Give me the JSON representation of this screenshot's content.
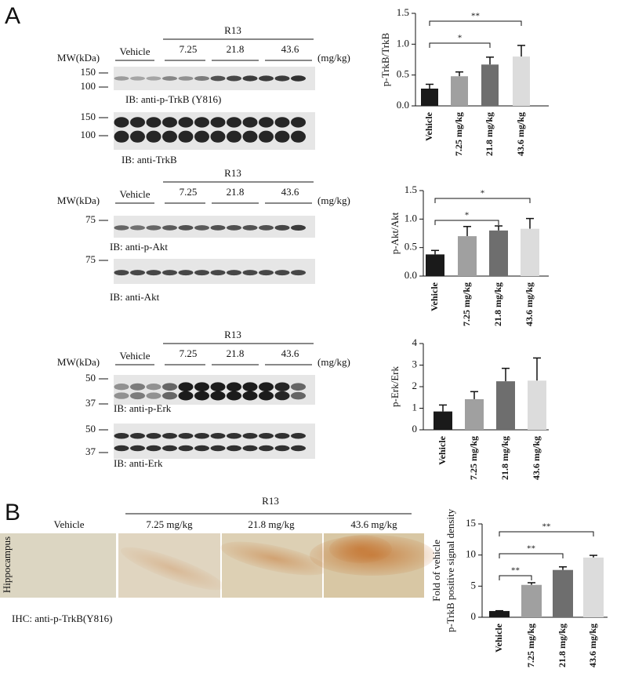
{
  "panel_labels": [
    "A",
    "B"
  ],
  "blots": [
    {
      "group": "R13",
      "control": "Vehicle",
      "doses": [
        "7.25",
        "21.8",
        "43.6"
      ],
      "unit": "(mg/kg)",
      "mw_header": "MW(kDa)",
      "membranes": [
        {
          "markers": [
            "150",
            "100"
          ],
          "label": "IB: anti-p-TrkB (Y816)"
        },
        {
          "markers": [
            "150",
            "100"
          ],
          "label": "IB: anti-TrkB"
        }
      ]
    },
    {
      "group": "R13",
      "control": "Vehicle",
      "doses": [
        "7.25",
        "21.8",
        "43.6"
      ],
      "unit": "(mg/kg)",
      "mw_header": "MW(kDa)",
      "membranes": [
        {
          "markers": [
            "75"
          ],
          "label": "IB: anti-p-Akt"
        },
        {
          "markers": [
            "75"
          ],
          "label": "IB: anti-Akt"
        }
      ]
    },
    {
      "group": "R13",
      "control": "Vehicle",
      "doses": [
        "7.25",
        "21.8",
        "43.6"
      ],
      "unit": "(mg/kg)",
      "mw_header": "MW(kDa)",
      "membranes": [
        {
          "markers": [
            "50",
            "37"
          ],
          "label": "IB: anti-p-Erk"
        },
        {
          "markers": [
            "50",
            "37"
          ],
          "label": "IB: anti-Erk"
        }
      ]
    }
  ],
  "ihc": {
    "group": "R13",
    "panels": [
      "Vehicle",
      "7.25 mg/kg",
      "21.8 mg/kg",
      "43.6 mg/kg"
    ],
    "region": "Hippocampus",
    "label": "IHC: anti-p-TrkB(Y816)"
  },
  "chart_data": [
    {
      "type": "bar",
      "y_label": [
        "p-TrkB/TrkB"
      ],
      "categories": [
        "Vehicle",
        "7.25 mg/kg",
        "21.8 mg/kg",
        "43.6 mg/kg"
      ],
      "values": [
        0.28,
        0.48,
        0.67,
        0.8
      ],
      "errors": [
        0.07,
        0.07,
        0.12,
        0.18
      ],
      "colors": [
        "#1a1a1a",
        "#a0a0a0",
        "#6e6e6e",
        "#dcdcdc"
      ],
      "ylim": [
        0,
        1.5
      ],
      "yticks": [
        {
          "value": 0,
          "label": "0.0"
        },
        {
          "value": 0.5,
          "label": "0.5"
        },
        {
          "value": 1,
          "label": "1.0"
        },
        {
          "value": 1.5,
          "label": "1.5"
        }
      ],
      "annotations": [
        {
          "between": [
            "Vehicle",
            "21.8 mg/kg"
          ],
          "label": "*"
        },
        {
          "between": [
            "Vehicle",
            "43.6 mg/kg"
          ],
          "label": "**"
        }
      ]
    },
    {
      "type": "bar",
      "y_label": [
        "p-Akt/Akt"
      ],
      "categories": [
        "Vehicle",
        "7.25 mg/kg",
        "21.8 mg/kg",
        "43.6 mg/kg"
      ],
      "values": [
        0.38,
        0.7,
        0.8,
        0.83
      ],
      "errors": [
        0.07,
        0.17,
        0.08,
        0.18
      ],
      "colors": [
        "#1a1a1a",
        "#a0a0a0",
        "#6e6e6e",
        "#dcdcdc"
      ],
      "ylim": [
        0,
        1.5
      ],
      "yticks": [
        {
          "value": 0,
          "label": "0.0"
        },
        {
          "value": 0.5,
          "label": "0.5"
        },
        {
          "value": 1,
          "label": "1.0"
        },
        {
          "value": 1.5,
          "label": "1.5"
        }
      ],
      "annotations": [
        {
          "between": [
            "Vehicle",
            "21.8 mg/kg"
          ],
          "label": "*"
        },
        {
          "between": [
            "Vehicle",
            "43.6 mg/kg"
          ],
          "label": "*"
        }
      ]
    },
    {
      "type": "bar",
      "y_label": [
        "p-Erk/Erk"
      ],
      "categories": [
        "Vehicle",
        "7.25 mg/kg",
        "21.8 mg/kg",
        "43.6 mg/kg"
      ],
      "values": [
        0.85,
        1.42,
        2.25,
        2.28
      ],
      "errors": [
        0.3,
        0.35,
        0.6,
        1.05
      ],
      "colors": [
        "#1a1a1a",
        "#a0a0a0",
        "#6e6e6e",
        "#dcdcdc"
      ],
      "ylim": [
        0,
        4
      ],
      "yticks": [
        0,
        1,
        2,
        3,
        4
      ],
      "annotations": []
    },
    {
      "type": "bar",
      "y_label": [
        "Fold of vehicle",
        "p-TrkB positive signal density"
      ],
      "categories": [
        "Vehicle",
        "7.25 mg/kg",
        "21.8 mg/kg",
        "43.6 mg/kg"
      ],
      "values": [
        1,
        5.2,
        7.6,
        9.6
      ],
      "errors": [
        0.05,
        0.35,
        0.5,
        0.35
      ],
      "colors": [
        "#1a1a1a",
        "#a0a0a0",
        "#6e6e6e",
        "#dcdcdc"
      ],
      "ylim": [
        0,
        15
      ],
      "yticks": [
        0,
        5,
        10,
        15
      ],
      "annotations": [
        {
          "between": [
            "Vehicle",
            "7.25 mg/kg"
          ],
          "label": "**"
        },
        {
          "between": [
            "Vehicle",
            "21.8 mg/kg"
          ],
          "label": "**"
        },
        {
          "between": [
            "Vehicle",
            "43.6 mg/kg"
          ],
          "label": "**"
        }
      ]
    }
  ]
}
